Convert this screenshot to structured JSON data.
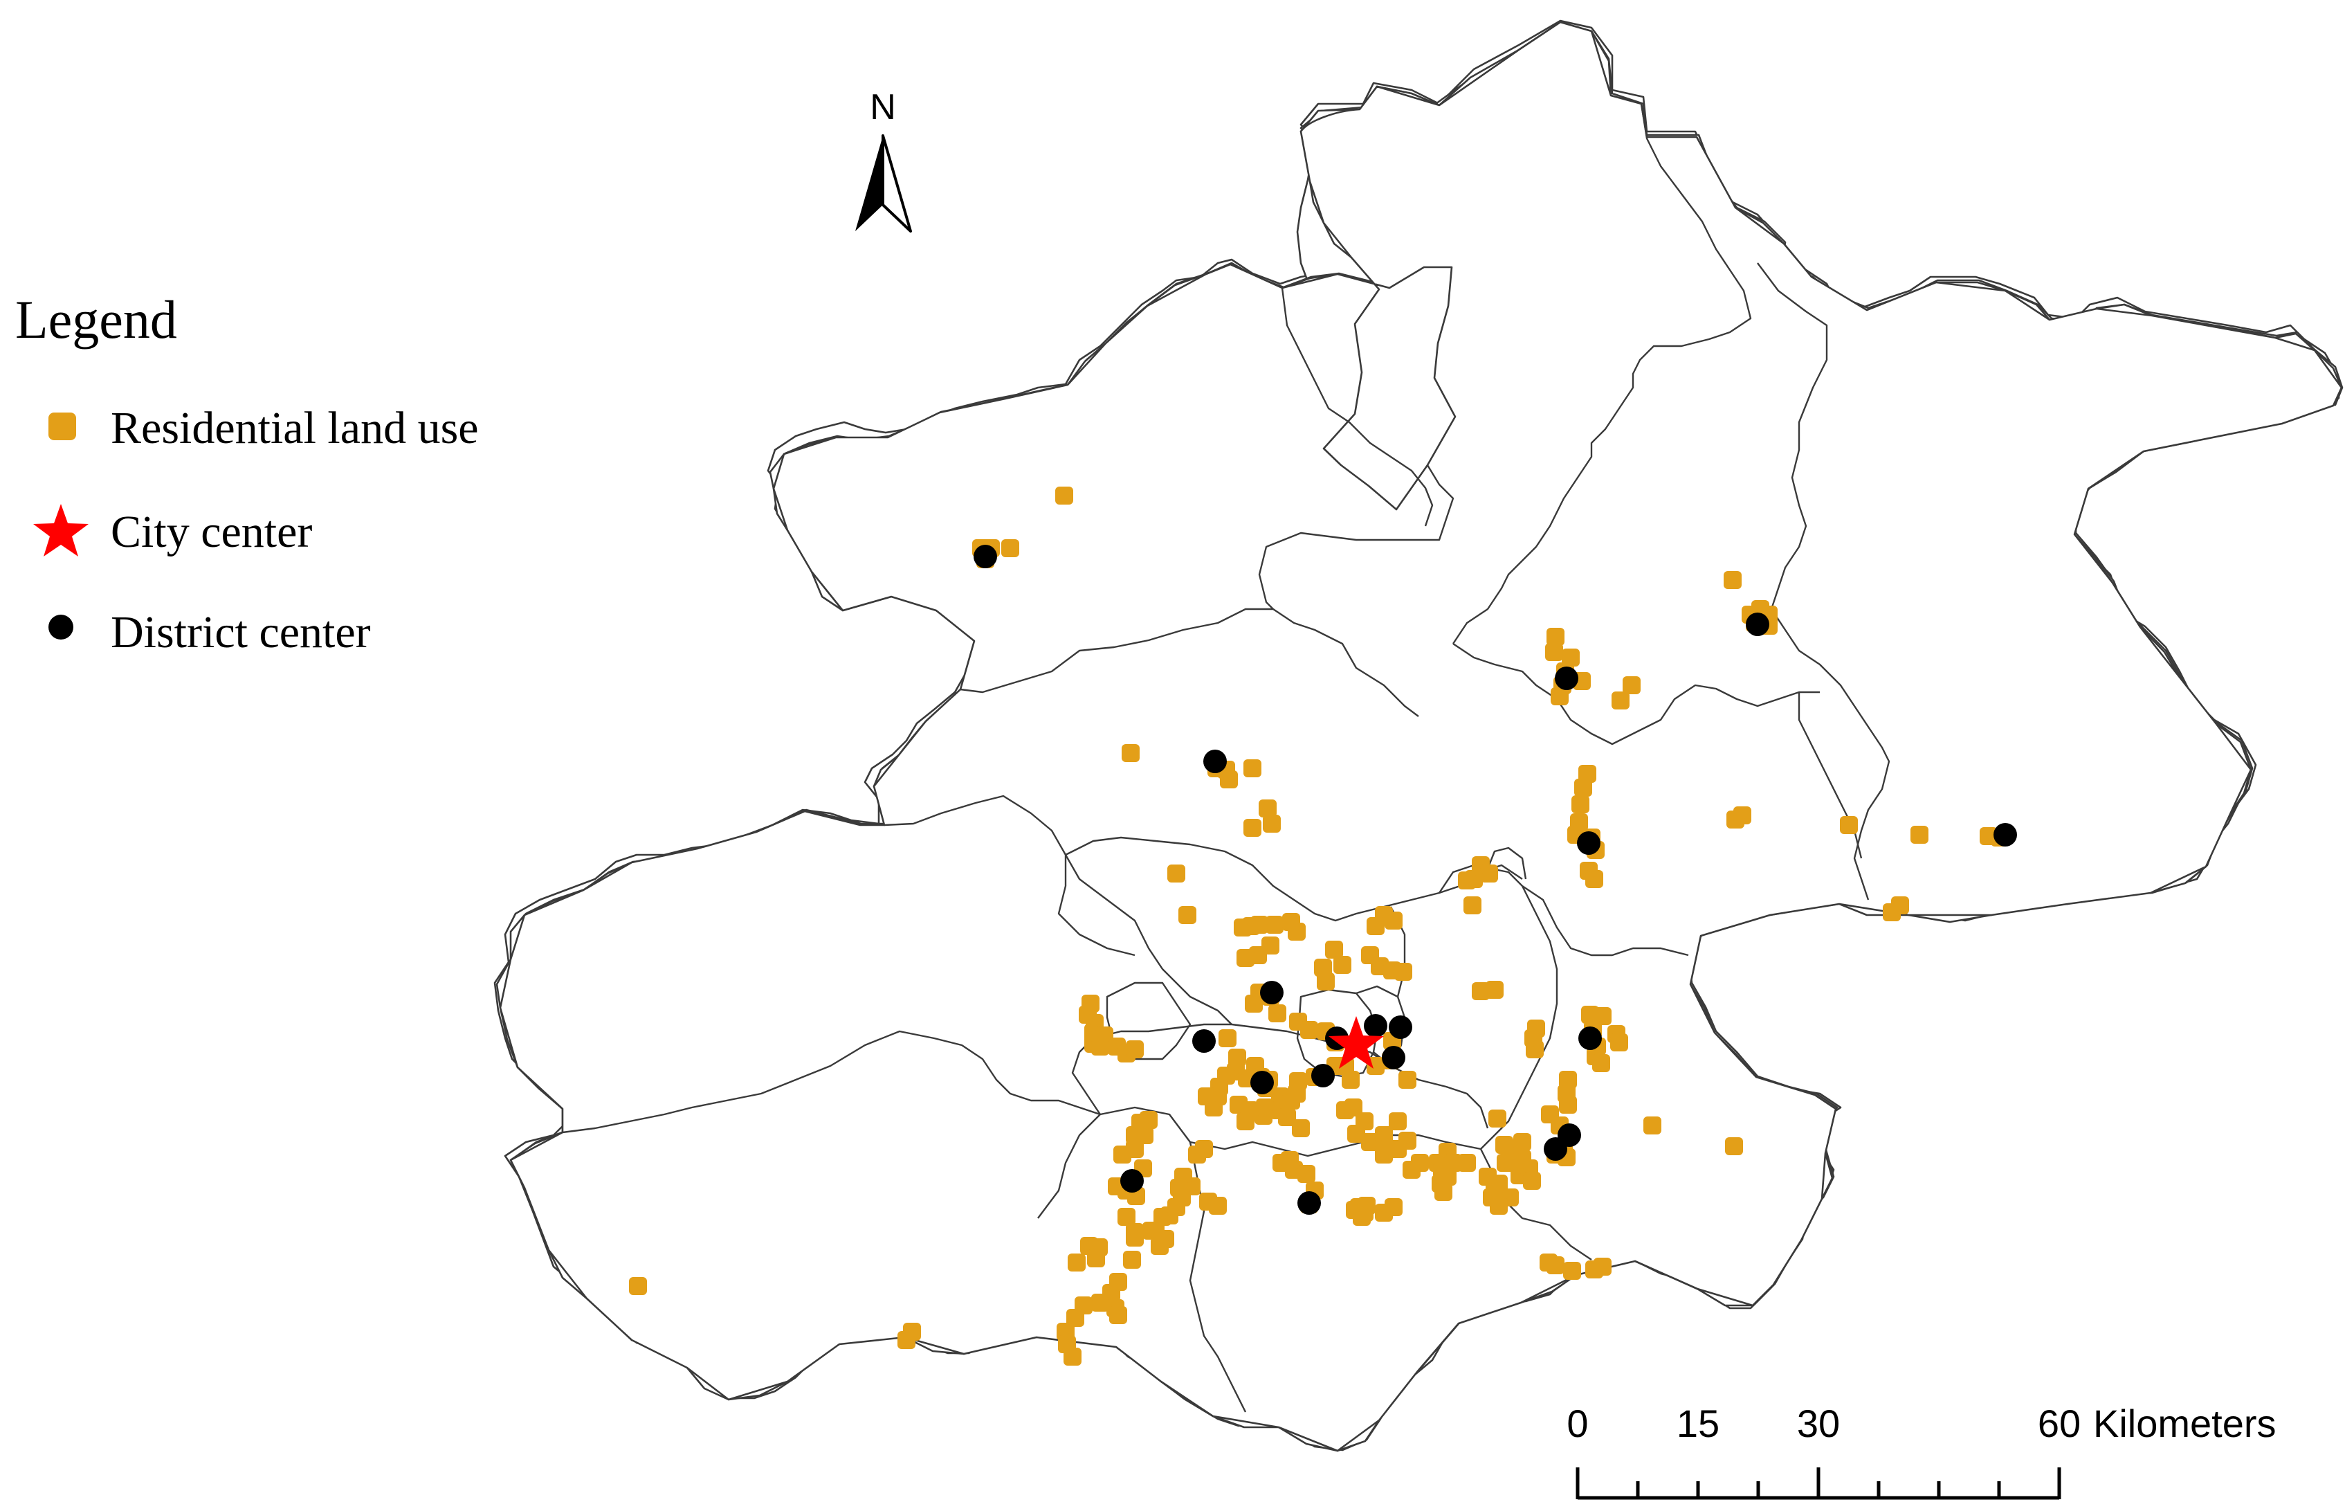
{
  "legend": {
    "title": "Legend",
    "items": [
      {
        "label": "Residential land use",
        "symbol": "rounded-square",
        "color": "#E39F18"
      },
      {
        "label": "City center",
        "symbol": "star",
        "color": "#FF0000"
      },
      {
        "label": "District center",
        "symbol": "circle",
        "color": "#000000"
      }
    ]
  },
  "north_arrow": {
    "label": "N",
    "icon": "north-arrow-icon"
  },
  "scale_bar": {
    "ticks": [
      "0",
      "15",
      "30",
      "60"
    ],
    "unit": "Kilometers"
  },
  "colors": {
    "residential": "#E39F18",
    "city_center": "#FF0000",
    "district_center": "#000000",
    "boundary": "#3a3a3a"
  }
}
